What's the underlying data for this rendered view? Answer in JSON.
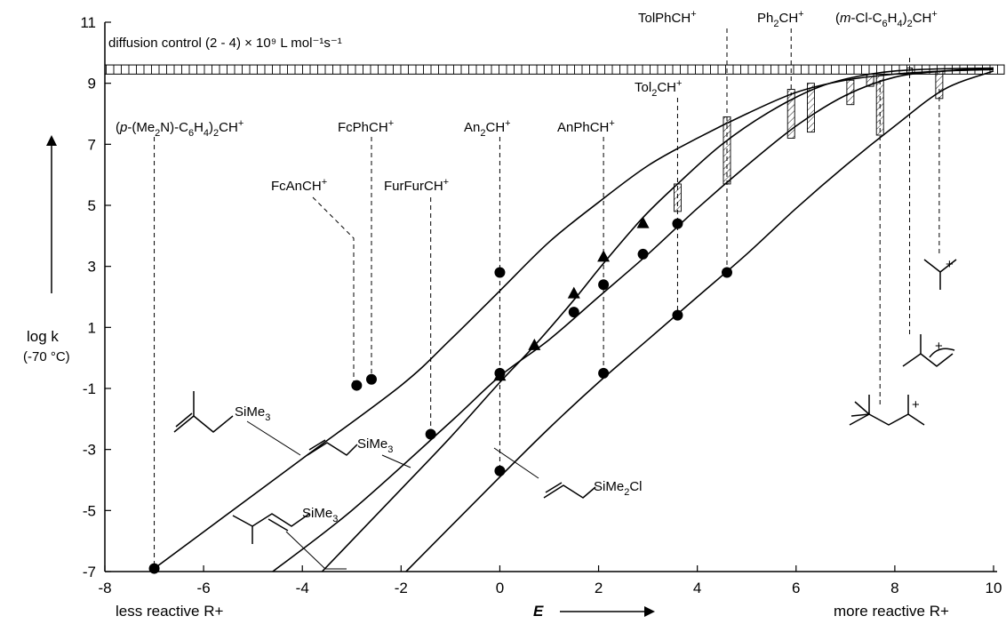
{
  "chart_data": {
    "type": "line",
    "title": "",
    "xlabel": "E",
    "x_left_note": "less reactive R+",
    "x_right_note": "more reactive R+",
    "ylabel": "log k",
    "ylabel_sub": "(-70 °C)",
    "xlim": [
      -8,
      10
    ],
    "ylim": [
      -7,
      11
    ],
    "x_ticks": [
      -8,
      -6,
      -4,
      -2,
      0,
      2,
      4,
      6,
      8,
      10
    ],
    "y_ticks": [
      -7,
      -5,
      -3,
      -1,
      1,
      3,
      5,
      7,
      9,
      11
    ],
    "diffusion_band": {
      "label": "diffusion control (2 - 4) × 10⁹ L mol⁻¹s⁻¹",
      "y_range": [
        9.3,
        9.6
      ]
    },
    "cations": [
      {
        "label": "(p-(Me2N)-C6H4)2CH+",
        "E": -7.0
      },
      {
        "label": "FcAnCH+",
        "E": -2.9
      },
      {
        "label": "FcPhCH+",
        "E": -2.6
      },
      {
        "label": "FurFurCH+",
        "E": -1.4
      },
      {
        "label": "An2CH+",
        "E": 0.0
      },
      {
        "label": "AnPhCH+",
        "E": 2.1
      },
      {
        "label": "Tol2CH+",
        "E": 3.6
      },
      {
        "label": "TolPhCH+",
        "E": 4.6
      },
      {
        "label": "Ph2CH+",
        "E": 5.9
      },
      {
        "label": "(m-Cl-C6H4)2CH+",
        "E": 7.5
      }
    ],
    "series": [
      {
        "name": "SiMe3 (methallyl)",
        "line_x": [
          -7.5,
          -6,
          -4,
          -2,
          -1,
          0,
          1,
          2,
          3,
          4,
          5,
          6,
          7,
          8,
          9,
          10
        ],
        "line_y": [
          -7.5,
          -5.7,
          -3.3,
          -0.9,
          0.6,
          2.2,
          3.8,
          5.1,
          6.3,
          7.2,
          8.0,
          8.7,
          9.1,
          9.3,
          9.4,
          9.45
        ],
        "points": [
          {
            "x": -7.0,
            "y": -6.9
          },
          {
            "x": -2.9,
            "y": -0.9
          },
          {
            "x": -2.6,
            "y": -0.7
          },
          {
            "x": 0.0,
            "y": 2.8
          }
        ]
      },
      {
        "name": "SiMe3 (allyl)",
        "line_x": [
          -4.6,
          -3,
          -1,
          0,
          1,
          2,
          3,
          4,
          5,
          6,
          7,
          8,
          9,
          10
        ],
        "line_y": [
          -7.0,
          -5.0,
          -2.1,
          -0.6,
          0.6,
          2.0,
          3.4,
          4.9,
          6.3,
          7.6,
          8.6,
          9.2,
          9.4,
          9.5
        ],
        "points": [
          {
            "x": -1.4,
            "y": -2.5
          },
          {
            "x": 0.0,
            "y": -0.5
          },
          {
            "x": 1.5,
            "y": 1.5
          },
          {
            "x": 2.1,
            "y": 2.4
          },
          {
            "x": 2.9,
            "y": 3.4
          },
          {
            "x": 3.6,
            "y": 4.4
          }
        ]
      },
      {
        "name": "SiMe3 (prenyl)",
        "line_x": [
          -3.6,
          -2,
          -1,
          0,
          0.7,
          1.5,
          2.1,
          2.9,
          3.6,
          4.5,
          5.5,
          6.5,
          7.5,
          8.5,
          10
        ],
        "line_y": [
          -7.0,
          -4.3,
          -2.6,
          -0.8,
          0.4,
          1.9,
          3.1,
          4.6,
          5.7,
          7.0,
          8.1,
          8.9,
          9.3,
          9.45,
          9.5
        ],
        "points": [
          {
            "x": 0.0,
            "y": -0.6
          },
          {
            "x": 0.7,
            "y": 0.4
          },
          {
            "x": 1.5,
            "y": 2.1
          },
          {
            "x": 2.1,
            "y": 3.3
          },
          {
            "x": 2.9,
            "y": 4.4
          }
        ]
      },
      {
        "name": "SiMe2Cl (allyl)",
        "line_x": [
          -1.9,
          0,
          1,
          2,
          3,
          4,
          5,
          6,
          7,
          8,
          9,
          10
        ],
        "line_y": [
          -7.0,
          -3.9,
          -2.3,
          -0.8,
          0.6,
          2.0,
          3.4,
          4.9,
          6.3,
          7.6,
          8.8,
          9.4
        ],
        "points": [
          {
            "x": 0.0,
            "y": -3.7
          },
          {
            "x": 2.1,
            "y": -0.5
          },
          {
            "x": 3.6,
            "y": 1.4
          },
          {
            "x": 4.6,
            "y": 2.8
          }
        ]
      }
    ]
  },
  "labels": {
    "sime3": "SiMe",
    "sime2cl_pre": "SiMe",
    "sime2cl_post": "Cl",
    "sub3": "3",
    "sub2": "2"
  }
}
